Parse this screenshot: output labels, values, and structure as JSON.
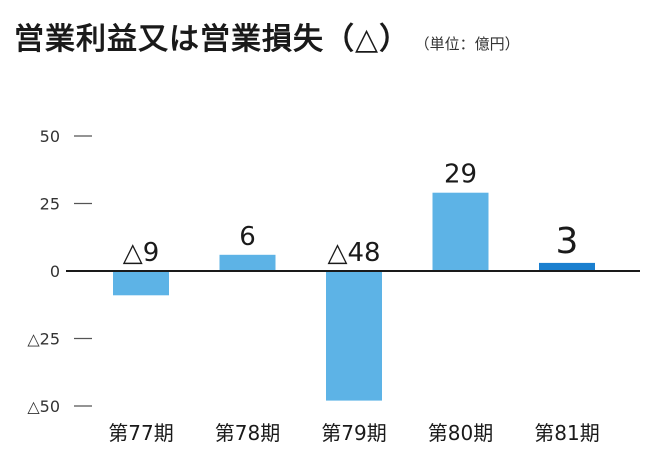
{
  "header": {
    "title": "営業利益又は営業損失（△）",
    "unit": "（単位：億円）"
  },
  "chart_data": {
    "type": "bar",
    "categories": [
      "第77期",
      "第78期",
      "第79期",
      "第80期",
      "第81期"
    ],
    "values": [
      -9,
      6,
      -48,
      29,
      3
    ],
    "data_labels": [
      "△9",
      "6",
      "△48",
      "29",
      "3"
    ],
    "ylim": [
      -50,
      50
    ],
    "yticks": [
      50,
      25,
      0,
      -25,
      -50
    ],
    "ytick_labels": [
      "50",
      "25",
      "0",
      "△25",
      "△50"
    ],
    "title": "営業利益又は営業損失（△）",
    "unit": "（単位：億円）",
    "grid": false,
    "legend": "none",
    "colors": {
      "bar": "#5db3e6",
      "highlight": "#1a7fcf",
      "axis": "#1a1a1a",
      "tick": "#555555"
    },
    "highlight_index": 4
  }
}
